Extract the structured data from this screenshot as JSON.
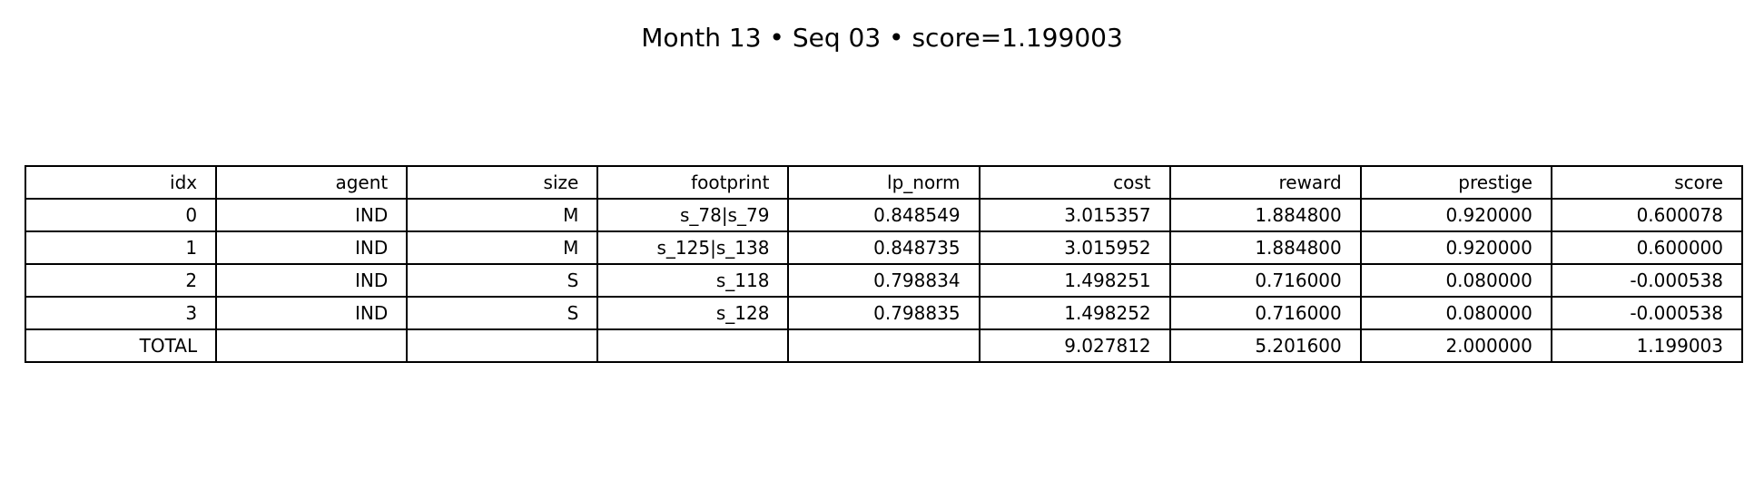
{
  "title": "Month 13 • Seq 03 • score=1.199003",
  "chart_data": {
    "type": "table",
    "title": "Month 13 • Seq 03 • score=1.199003",
    "columns": [
      "idx",
      "agent",
      "size",
      "footprint",
      "lp_norm",
      "cost",
      "reward",
      "prestige",
      "score"
    ],
    "rows": [
      [
        "0",
        "IND",
        "M",
        "s_78|s_79",
        "0.848549",
        "3.015357",
        "1.884800",
        "0.920000",
        "0.600078"
      ],
      [
        "1",
        "IND",
        "M",
        "s_125|s_138",
        "0.848735",
        "3.015952",
        "1.884800",
        "0.920000",
        "0.600000"
      ],
      [
        "2",
        "IND",
        "S",
        "s_118",
        "0.798834",
        "1.498251",
        "0.716000",
        "0.080000",
        "-0.000538"
      ],
      [
        "3",
        "IND",
        "S",
        "s_128",
        "0.798835",
        "1.498252",
        "0.716000",
        "0.080000",
        "-0.000538"
      ],
      [
        "TOTAL",
        "",
        "",
        "",
        "",
        "9.027812",
        "5.201600",
        "2.000000",
        "1.199003"
      ]
    ]
  }
}
